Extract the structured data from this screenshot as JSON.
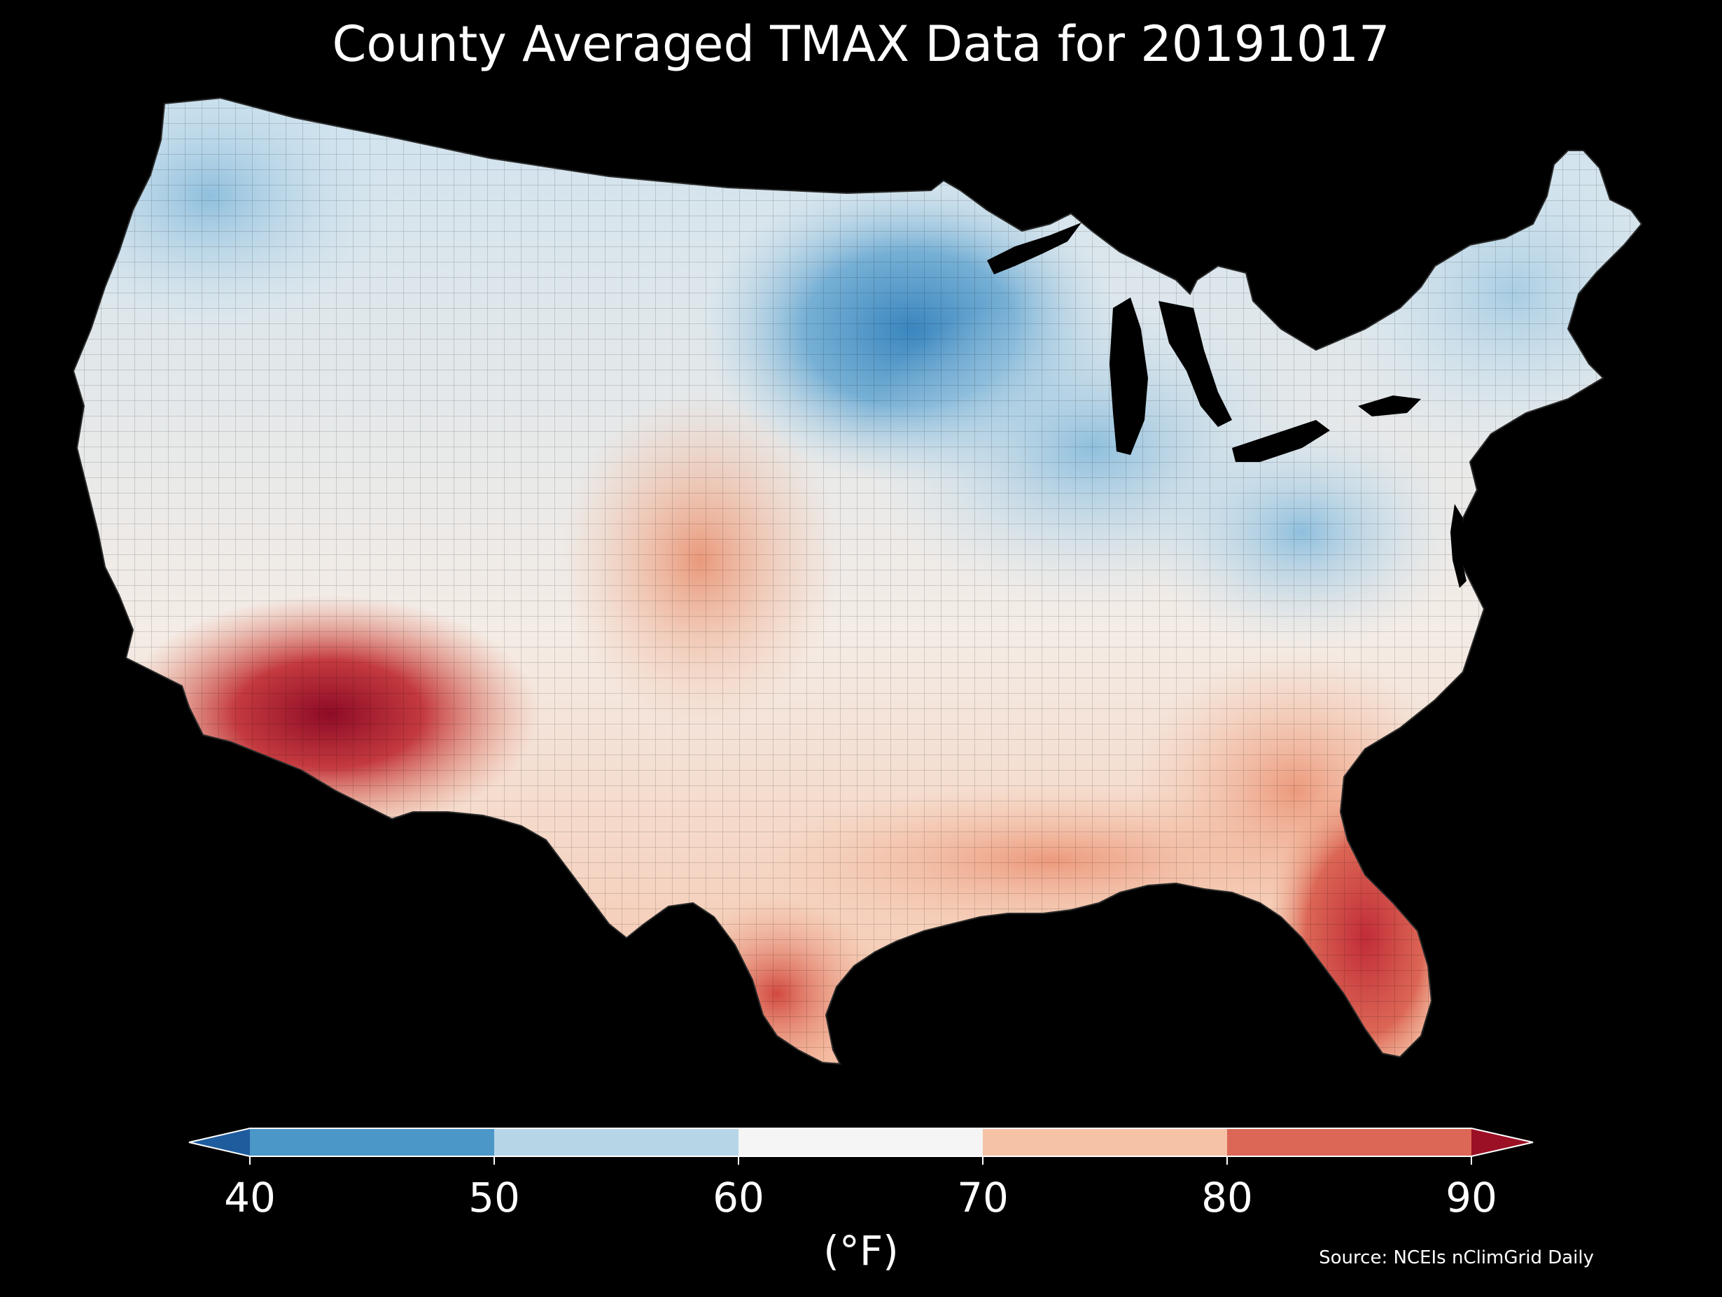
{
  "title": "County Averaged TMAX Data for 20191017",
  "colorbar": {
    "units_label": "(°F)",
    "ticks": [
      "40",
      "50",
      "60",
      "70",
      "80",
      "90"
    ],
    "extend": "both",
    "under_color": "#1f5c9e",
    "over_color": "#9b1025",
    "bins": [
      {
        "from": 40,
        "to": 50,
        "color": "#4b97c8"
      },
      {
        "from": 50,
        "to": 60,
        "color": "#b6d6e8"
      },
      {
        "from": 60,
        "to": 70,
        "color": "#f5f5f5"
      },
      {
        "from": 70,
        "to": 80,
        "color": "#f6c2a6"
      },
      {
        "from": 80,
        "to": 90,
        "color": "#dc6756"
      }
    ]
  },
  "source": "Source: NCEIs nClimGrid Daily",
  "map": {
    "region": "Contiguous United States",
    "variable": "TMAX",
    "units": "°F",
    "pattern": "Coolest (40–50 °F) over Minnesota, Wisconsin and the Upper Great Lakes; cool (50–60 °F) across the Pacific Northwest, Ohio Valley, Appalachians and New England; warmest (80–90+ °F) in southern Arizona, southern California, south Texas and Florida."
  }
}
